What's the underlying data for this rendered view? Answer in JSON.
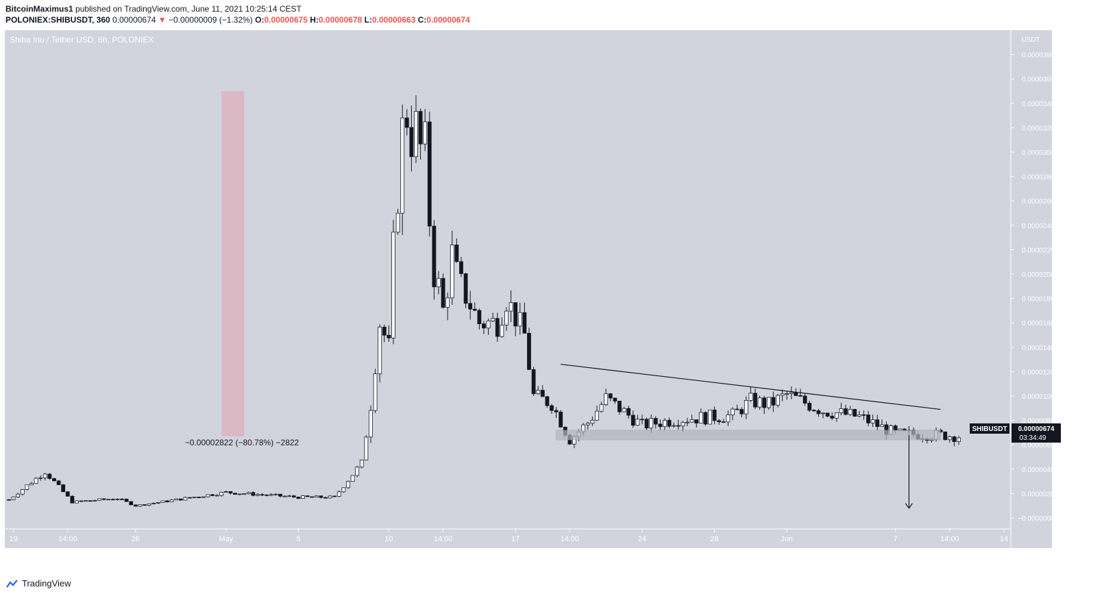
{
  "header": {
    "author": "BitcoinMaximus1",
    "published": "published on TradingView.com, June 11, 2021 10:25:14 CEST",
    "symbol_line": {
      "symbol": "POLONIEX:SHIBUSDT, 360",
      "last": "0.00000674",
      "change": "−0.00000009 (−1.32%)",
      "o_label": "O:",
      "o": "0.00000675",
      "h_label": "H:",
      "h": "0.00000678",
      "l_label": "L:",
      "l": "0.00000663",
      "c_label": "C:",
      "c": "0.00000674"
    }
  },
  "chart_title": "Shiba Inu / Tether USD, 6h, POLONIEX",
  "axis_unit": "USDT",
  "price_label": {
    "symbol": "SHIBUSDT",
    "price": "0.00000674",
    "countdown": "03:34:49"
  },
  "measure_label": "−0.00002822 (−80.78%) −2822",
  "footer_brand": "TradingView",
  "colors": {
    "background": "#d1d4dc",
    "bull": "#ffffff",
    "bear": "#131722",
    "measure_fill": "#e3a3b0",
    "support_zone": "#b2b5be"
  },
  "chart_data": {
    "type": "candlestick",
    "timeframe": "6h",
    "ylim": [
      0,
      4e-05
    ],
    "y_ticks": [
      "0.00003800",
      "0.00003600",
      "0.00003400",
      "0.00003200",
      "0.00003000",
      "0.00002800",
      "0.00002600",
      "0.00002400",
      "0.00002200",
      "0.00002000",
      "0.00001800",
      "0.00001600",
      "0.00001400",
      "0.00001200",
      "0.00001000",
      "0.00000800",
      "0.00000600",
      "0.00000400",
      "0.00000200",
      "−0.00000000"
    ],
    "y_tick_values": [
      3.8e-05,
      3.6e-05,
      3.4e-05,
      3.2e-05,
      3e-05,
      2.8e-05,
      2.6e-05,
      2.4e-05,
      2.2e-05,
      2e-05,
      1.8e-05,
      1.6e-05,
      1.4e-05,
      1.2e-05,
      1e-05,
      8e-06,
      6e-06,
      4e-06,
      2e-06,
      0
    ],
    "x_ticks": [
      {
        "label": "19",
        "bar": 1
      },
      {
        "label": "14:00",
        "bar": 13
      },
      {
        "label": "26",
        "bar": 28
      },
      {
        "label": "May",
        "bar": 48
      },
      {
        "label": "5",
        "bar": 64
      },
      {
        "label": "10",
        "bar": 84
      },
      {
        "label": "14:00",
        "bar": 96
      },
      {
        "label": "17",
        "bar": 112
      },
      {
        "label": "14:00",
        "bar": 124
      },
      {
        "label": "24",
        "bar": 140
      },
      {
        "label": "28",
        "bar": 156
      },
      {
        "label": "Jun",
        "bar": 172
      },
      {
        "label": "7",
        "bar": 196
      },
      {
        "label": "14:00",
        "bar": 208
      },
      {
        "label": "14",
        "bar": 220
      }
    ],
    "close_path": [
      [
        0,
        1.5e-06
      ],
      [
        8,
        3.8e-06
      ],
      [
        14,
        1.3e-06
      ],
      [
        24,
        1.6e-06
      ],
      [
        28,
        1e-06
      ],
      [
        48,
        2.1e-06
      ],
      [
        64,
        1.7e-06
      ],
      [
        72,
        1.7e-06
      ],
      [
        78,
        4.5e-06
      ],
      [
        80,
        9.3e-06
      ],
      [
        82,
        1.6e-05
      ],
      [
        84,
        1.4e-05
      ],
      [
        86,
        2.8e-05
      ],
      [
        88,
        3.4e-05
      ],
      [
        90,
        3.1e-05
      ],
      [
        92,
        2.9e-05
      ],
      [
        94,
        2.1e-05
      ],
      [
        96,
        1.7e-05
      ],
      [
        98,
        2.1e-05
      ],
      [
        100,
        1.9e-05
      ],
      [
        104,
        1.6e-05
      ],
      [
        108,
        1.6e-05
      ],
      [
        110,
        1.8e-05
      ],
      [
        114,
        1.5e-05
      ],
      [
        116,
        1e-05
      ],
      [
        120,
        9.4e-06
      ],
      [
        124,
        6.4e-06
      ],
      [
        128,
        7.8e-06
      ],
      [
        132,
        9.8e-06
      ],
      [
        140,
        7.6e-06
      ],
      [
        148,
        8.1e-06
      ],
      [
        160,
        8.4e-06
      ],
      [
        164,
        9.6e-06
      ],
      [
        168,
        9.3e-06
      ],
      [
        172,
        1.01e-05
      ],
      [
        180,
        8.8e-06
      ],
      [
        188,
        8.3e-06
      ],
      [
        196,
        6.9e-06
      ],
      [
        206,
        6.8e-06
      ],
      [
        210,
        6.7e-06
      ]
    ],
    "drawings": {
      "measure_box": {
        "bar_from": 47,
        "bar_to": 52,
        "y_top": 3.5e-05,
        "y_bottom": 6.7e-06
      },
      "trendline": {
        "bar_from": 122,
        "y_from": 1.26e-05,
        "bar_to": 206,
        "y_to": 8.9e-06
      },
      "support_zone": {
        "bar_from": 121,
        "bar_to": 206,
        "y_top": 7.2e-06,
        "y_bottom": 6.4e-06
      },
      "arrow": {
        "bar": 199,
        "y_from": 6.8e-06,
        "y_to": 8e-07
      }
    }
  }
}
